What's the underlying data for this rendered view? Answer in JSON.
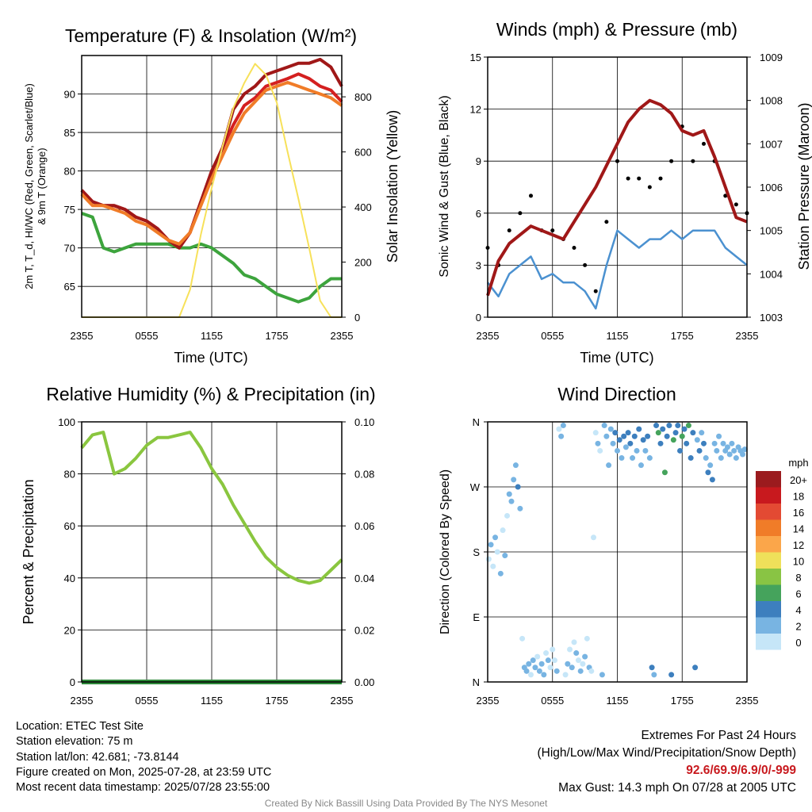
{
  "chart_data": [
    {
      "type": "line",
      "title": "Temperature (F) & Insolation (W/m²)",
      "xlabel": "Time (UTC)",
      "ylabel_lines": [
        "2m T, T_d, HI/WC (Red, Green, Scarlet/Blue)",
        "& 9m T (Orange)"
      ],
      "y2label": "Solar Insolation (Yellow)",
      "x_ticks": [
        "2355",
        "0555",
        "1155",
        "1755",
        "2355"
      ],
      "y_ticks": [
        "65",
        "70",
        "75",
        "80",
        "85",
        "90"
      ],
      "y2_ticks": [
        "0",
        "200",
        "400",
        "600",
        "800"
      ],
      "ylim": [
        61,
        95
      ],
      "y2lim": [
        0,
        950
      ],
      "x_hours_after_2355": [
        0,
        1,
        2,
        3,
        4,
        5,
        6,
        7,
        8,
        9,
        10,
        11,
        12,
        13,
        14,
        15,
        16,
        17,
        18,
        19,
        20,
        21,
        22,
        23,
        24
      ],
      "series": [
        {
          "key": "t2m",
          "color": "#d42020",
          "values": [
            77.5,
            76,
            75.5,
            75.5,
            75,
            74,
            73.5,
            72.5,
            71,
            70,
            72,
            76,
            80,
            83,
            86,
            88.5,
            89.5,
            91,
            91.5,
            92,
            92.6,
            92,
            91,
            90.5,
            89
          ]
        },
        {
          "key": "dewpoint",
          "color": "#3da43d",
          "values": [
            74.5,
            74,
            70,
            69.5,
            70,
            70.5,
            70.5,
            70.5,
            70.5,
            70,
            70,
            70.5,
            70,
            69,
            68,
            66.5,
            66,
            65,
            64,
            63.5,
            63,
            63.5,
            65,
            66,
            66
          ]
        },
        {
          "key": "hi_wc",
          "color": "#a01818",
          "values": [
            77.5,
            76,
            75.5,
            75.5,
            75,
            74,
            73.5,
            72.5,
            71,
            70,
            72,
            76,
            80,
            83,
            88,
            90,
            91,
            92.5,
            93,
            93.5,
            94,
            94,
            94.5,
            93.5,
            91
          ]
        },
        {
          "key": "t9m",
          "color": "#f07c28",
          "values": [
            77,
            75.5,
            75.5,
            75,
            74.5,
            73.5,
            73,
            72,
            71,
            70.5,
            72,
            75.5,
            79,
            82,
            85,
            87.5,
            89,
            90.5,
            91,
            91.5,
            91,
            90.5,
            90,
            89.5,
            88.5
          ]
        },
        {
          "key": "insolation",
          "axis": "y2",
          "color": "#f7e15a",
          "values": [
            0,
            0,
            0,
            0,
            0,
            0,
            0,
            0,
            0,
            0,
            100,
            300,
            470,
            620,
            760,
            850,
            920,
            880,
            780,
            600,
            430,
            250,
            60,
            0,
            0
          ]
        }
      ]
    },
    {
      "type": "line",
      "title": "Winds (mph) & Pressure (mb)",
      "xlabel": "Time (UTC)",
      "ylabel": "Sonic Wind & Gust (Blue, Black)",
      "y2label": "Station Pressure (Maroon)",
      "x_ticks": [
        "2355",
        "0555",
        "1155",
        "1755",
        "2355"
      ],
      "y_ticks": [
        "0",
        "3",
        "6",
        "9",
        "12",
        "15"
      ],
      "y2_ticks": [
        "1003",
        "1004",
        "1005",
        "1006",
        "1007",
        "1008",
        "1009"
      ],
      "ylim": [
        0,
        15
      ],
      "y2lim": [
        1003,
        1009
      ],
      "x_hours_after_2355": [
        0,
        1,
        2,
        3,
        4,
        5,
        6,
        7,
        8,
        9,
        10,
        11,
        12,
        13,
        14,
        15,
        16,
        17,
        18,
        19,
        20,
        21,
        22,
        23,
        24
      ],
      "series": [
        {
          "key": "wind",
          "color": "#4b91d0",
          "values": [
            2,
            1.2,
            2.5,
            3,
            3.5,
            2.2,
            2.5,
            2,
            2,
            1.5,
            0.5,
            3,
            5,
            4.5,
            4,
            4.5,
            4.5,
            5,
            4.5,
            5,
            5,
            5,
            4,
            3.5,
            3
          ]
        },
        {
          "key": "gust",
          "color": "#000000",
          "values": [
            4,
            3,
            5,
            6,
            7,
            5,
            5,
            4.5,
            4,
            3,
            1.5,
            5.5,
            9,
            8,
            8,
            7.5,
            8,
            9,
            11,
            9,
            10,
            9,
            7,
            6.5,
            6
          ]
        },
        {
          "key": "pressure",
          "axis": "y2",
          "color": "#a01818",
          "values": [
            1003.5,
            1004.3,
            1004.7,
            1004.9,
            1005.1,
            1005,
            1004.9,
            1004.8,
            1005.2,
            1005.6,
            1006,
            1006.5,
            1007,
            1007.5,
            1007.8,
            1008,
            1007.9,
            1007.7,
            1007.3,
            1007.2,
            1007.3,
            1006.7,
            1006,
            1005.3,
            1005.2
          ]
        }
      ]
    },
    {
      "type": "line",
      "title": "Relative Humidity (%) & Precipitation (in)",
      "ylabel": "Percent & Precipitation",
      "x_ticks": [
        "2355",
        "0555",
        "1155",
        "1755",
        "2355"
      ],
      "y_ticks": [
        "0",
        "20",
        "40",
        "60",
        "80",
        "100"
      ],
      "y2_ticks": [
        "0.00",
        "0.02",
        "0.04",
        "0.06",
        "0.08",
        "0.10"
      ],
      "ylim": [
        0,
        100
      ],
      "y2lim": [
        0,
        0.1
      ],
      "x_hours_after_2355": [
        0,
        1,
        2,
        3,
        4,
        5,
        6,
        7,
        8,
        9,
        10,
        11,
        12,
        13,
        14,
        15,
        16,
        17,
        18,
        19,
        20,
        21,
        22,
        23,
        24
      ],
      "series": [
        {
          "key": "rh",
          "color": "#8ac63f",
          "values": [
            90,
            95,
            96,
            80,
            82,
            86,
            91,
            94,
            94,
            95,
            96,
            90,
            82,
            76,
            68,
            61,
            54,
            48,
            44,
            41,
            39,
            38,
            39,
            43,
            47
          ]
        },
        {
          "key": "precip",
          "axis": "y2",
          "color": "#2e8a3a",
          "values": [
            0,
            0,
            0,
            0,
            0,
            0,
            0,
            0,
            0,
            0,
            0,
            0,
            0,
            0,
            0,
            0,
            0,
            0,
            0,
            0,
            0,
            0,
            0,
            0,
            0
          ]
        }
      ]
    },
    {
      "type": "scatter",
      "title": "Wind Direction",
      "ylabel": "Direction (Colored By Speed)",
      "x_ticks": [
        "2355",
        "0555",
        "1155",
        "1755",
        "2355"
      ],
      "y_ticks": [
        "N",
        "E",
        "S",
        "W",
        "N"
      ],
      "ylim": [
        0,
        360
      ],
      "legend": {
        "title": "mph",
        "labels": [
          "20+",
          "18",
          "16",
          "14",
          "12",
          "10",
          "8",
          "6",
          "4",
          "2",
          "0"
        ],
        "colors": [
          "#9b1b1e",
          "#c8191e",
          "#e34a33",
          "#f07c28",
          "#fba64a",
          "#efe05a",
          "#89c444",
          "#45a35c",
          "#3d7fbe",
          "#78b4e2",
          "#c6e6f8"
        ]
      },
      "points": [
        {
          "x": 0.1,
          "dir": 170,
          "speed": 1
        },
        {
          "x": 0.3,
          "dir": 190,
          "speed": 2
        },
        {
          "x": 0.5,
          "dir": 160,
          "speed": 1
        },
        {
          "x": 0.7,
          "dir": 200,
          "speed": 2
        },
        {
          "x": 0.9,
          "dir": 180,
          "speed": 1
        },
        {
          "x": 1.2,
          "dir": 150,
          "speed": 2
        },
        {
          "x": 1.4,
          "dir": 210,
          "speed": 1
        },
        {
          "x": 1.6,
          "dir": 175,
          "speed": 2
        },
        {
          "x": 1.8,
          "dir": 230,
          "speed": 1
        },
        {
          "x": 2.0,
          "dir": 260,
          "speed": 2
        },
        {
          "x": 2.2,
          "dir": 250,
          "speed": 3
        },
        {
          "x": 2.4,
          "dir": 280,
          "speed": 2
        },
        {
          "x": 2.6,
          "dir": 300,
          "speed": 3
        },
        {
          "x": 2.8,
          "dir": 270,
          "speed": 4
        },
        {
          "x": 3.0,
          "dir": 240,
          "speed": 2
        },
        {
          "x": 3.2,
          "dir": 60,
          "speed": 1
        },
        {
          "x": 3.4,
          "dir": 20,
          "speed": 2
        },
        {
          "x": 3.6,
          "dir": 15,
          "speed": 3
        },
        {
          "x": 3.8,
          "dir": 25,
          "speed": 2
        },
        {
          "x": 4.0,
          "dir": 10,
          "speed": 1
        },
        {
          "x": 4.2,
          "dir": 30,
          "speed": 3
        },
        {
          "x": 4.4,
          "dir": 20,
          "speed": 2
        },
        {
          "x": 4.6,
          "dir": 35,
          "speed": 1
        },
        {
          "x": 4.8,
          "dir": 15,
          "speed": 2
        },
        {
          "x": 5.0,
          "dir": 25,
          "speed": 3
        },
        {
          "x": 5.2,
          "dir": 10,
          "speed": 2
        },
        {
          "x": 5.4,
          "dir": 40,
          "speed": 1
        },
        {
          "x": 5.6,
          "dir": 30,
          "speed": 2
        },
        {
          "x": 5.8,
          "dir": 20,
          "speed": 1
        },
        {
          "x": 6.0,
          "dir": 45,
          "speed": 0
        },
        {
          "x": 6.2,
          "dir": 30,
          "speed": 1
        },
        {
          "x": 6.4,
          "dir": 15,
          "speed": 2
        },
        {
          "x": 6.6,
          "dir": 350,
          "speed": 1
        },
        {
          "x": 6.8,
          "dir": 340,
          "speed": 2
        },
        {
          "x": 7.0,
          "dir": 355,
          "speed": 2
        },
        {
          "x": 7.2,
          "dir": 10,
          "speed": 1
        },
        {
          "x": 7.4,
          "dir": 25,
          "speed": 2
        },
        {
          "x": 7.6,
          "dir": 45,
          "speed": 1
        },
        {
          "x": 7.8,
          "dir": 20,
          "speed": 2
        },
        {
          "x": 8.0,
          "dir": 55,
          "speed": 1
        },
        {
          "x": 8.2,
          "dir": 40,
          "speed": 2
        },
        {
          "x": 8.4,
          "dir": 30,
          "speed": 1
        },
        {
          "x": 8.6,
          "dir": 15,
          "speed": 2
        },
        {
          "x": 8.8,
          "dir": 25,
          "speed": 1
        },
        {
          "x": 9.0,
          "dir": 35,
          "speed": 2
        },
        {
          "x": 9.2,
          "dir": 60,
          "speed": 1
        },
        {
          "x": 9.4,
          "dir": 20,
          "speed": 2
        },
        {
          "x": 9.6,
          "dir": 15,
          "speed": 1
        },
        {
          "x": 9.8,
          "dir": 200,
          "speed": 1
        },
        {
          "x": 10.0,
          "dir": 345,
          "speed": 1
        },
        {
          "x": 10.2,
          "dir": 330,
          "speed": 2
        },
        {
          "x": 10.4,
          "dir": 320,
          "speed": 1
        },
        {
          "x": 10.6,
          "dir": 10,
          "speed": 2
        },
        {
          "x": 10.8,
          "dir": 355,
          "speed": 2
        },
        {
          "x": 11.0,
          "dir": 340,
          "speed": 3
        },
        {
          "x": 11.2,
          "dir": 300,
          "speed": 2
        },
        {
          "x": 11.4,
          "dir": 350,
          "speed": 3
        },
        {
          "x": 11.6,
          "dir": 330,
          "speed": 2
        },
        {
          "x": 11.8,
          "dir": 345,
          "speed": 4
        },
        {
          "x": 12.0,
          "dir": 320,
          "speed": 3
        },
        {
          "x": 12.2,
          "dir": 335,
          "speed": 4
        },
        {
          "x": 12.4,
          "dir": 310,
          "speed": 3
        },
        {
          "x": 12.6,
          "dir": 340,
          "speed": 4
        },
        {
          "x": 12.8,
          "dir": 325,
          "speed": 3
        },
        {
          "x": 13.0,
          "dir": 345,
          "speed": 5
        },
        {
          "x": 13.2,
          "dir": 330,
          "speed": 4
        },
        {
          "x": 13.4,
          "dir": 310,
          "speed": 3
        },
        {
          "x": 13.6,
          "dir": 340,
          "speed": 4
        },
        {
          "x": 13.8,
          "dir": 320,
          "speed": 3
        },
        {
          "x": 14.0,
          "dir": 350,
          "speed": 4
        },
        {
          "x": 14.2,
          "dir": 300,
          "speed": 3
        },
        {
          "x": 14.4,
          "dir": 335,
          "speed": 4
        },
        {
          "x": 14.6,
          "dir": 320,
          "speed": 3
        },
        {
          "x": 14.8,
          "dir": 340,
          "speed": 4
        },
        {
          "x": 15.0,
          "dir": 310,
          "speed": 3
        },
        {
          "x": 15.2,
          "dir": 20,
          "speed": 4
        },
        {
          "x": 15.4,
          "dir": 10,
          "speed": 3
        },
        {
          "x": 15.6,
          "dir": 355,
          "speed": 5
        },
        {
          "x": 15.8,
          "dir": 345,
          "speed": 6
        },
        {
          "x": 16.0,
          "dir": 330,
          "speed": 4
        },
        {
          "x": 16.2,
          "dir": 350,
          "speed": 5
        },
        {
          "x": 16.4,
          "dir": 290,
          "speed": 6
        },
        {
          "x": 16.6,
          "dir": 340,
          "speed": 4
        },
        {
          "x": 16.8,
          "dir": 355,
          "speed": 5
        },
        {
          "x": 17.0,
          "dir": 10,
          "speed": 4
        },
        {
          "x": 17.2,
          "dir": 335,
          "speed": 6
        },
        {
          "x": 17.4,
          "dir": 345,
          "speed": 4
        },
        {
          "x": 17.6,
          "dir": 355,
          "speed": 5
        },
        {
          "x": 17.8,
          "dir": 320,
          "speed": 4
        },
        {
          "x": 18.0,
          "dir": 340,
          "speed": 6
        },
        {
          "x": 18.2,
          "dir": 350,
          "speed": 5
        },
        {
          "x": 18.4,
          "dir": 330,
          "speed": 4
        },
        {
          "x": 18.6,
          "dir": 355,
          "speed": 6
        },
        {
          "x": 18.8,
          "dir": 310,
          "speed": 4
        },
        {
          "x": 19.0,
          "dir": 345,
          "speed": 5
        },
        {
          "x": 19.2,
          "dir": 20,
          "speed": 4
        },
        {
          "x": 19.4,
          "dir": 335,
          "speed": 3
        },
        {
          "x": 19.6,
          "dir": 320,
          "speed": 4
        },
        {
          "x": 19.8,
          "dir": 345,
          "speed": 3
        },
        {
          "x": 20.0,
          "dir": 330,
          "speed": 4
        },
        {
          "x": 20.2,
          "dir": 310,
          "speed": 3
        },
        {
          "x": 20.4,
          "dir": 290,
          "speed": 4
        },
        {
          "x": 20.6,
          "dir": 300,
          "speed": 3
        },
        {
          "x": 20.8,
          "dir": 280,
          "speed": 4
        },
        {
          "x": 21.0,
          "dir": 330,
          "speed": 3
        },
        {
          "x": 21.2,
          "dir": 320,
          "speed": 2
        },
        {
          "x": 21.4,
          "dir": 340,
          "speed": 3
        },
        {
          "x": 21.6,
          "dir": 310,
          "speed": 2
        },
        {
          "x": 21.8,
          "dir": 330,
          "speed": 3
        },
        {
          "x": 22.0,
          "dir": 320,
          "speed": 2
        },
        {
          "x": 22.2,
          "dir": 325,
          "speed": 3
        },
        {
          "x": 22.4,
          "dir": 315,
          "speed": 2
        },
        {
          "x": 22.6,
          "dir": 330,
          "speed": 3
        },
        {
          "x": 22.8,
          "dir": 320,
          "speed": 2
        },
        {
          "x": 23.0,
          "dir": 310,
          "speed": 3
        },
        {
          "x": 23.2,
          "dir": 325,
          "speed": 2
        },
        {
          "x": 23.4,
          "dir": 320,
          "speed": 3
        },
        {
          "x": 23.6,
          "dir": 315,
          "speed": 2
        },
        {
          "x": 23.8,
          "dir": 322,
          "speed": 2
        }
      ]
    }
  ],
  "info": {
    "location": "Location: ETEC Test Site",
    "elevation": "Station elevation: 75 m",
    "latlon": "Station lat/lon: 42.681; -73.8144",
    "created": "Figure created on Mon, 2025-07-28, at 23:59 UTC",
    "recent": "Most recent data timestamp: 2025/07/28 23:55:00"
  },
  "extremes": {
    "title": "Extremes For Past 24 Hours",
    "subtitle": "(High/Low/Max Wind/Precipitation/Snow Depth)",
    "values": "92.6/69.9/6.9/0/-999",
    "gust": "Max Gust: 14.3 mph On 07/28 at 2005 UTC"
  },
  "credit": "Created By Nick Bassill Using Data Provided By The NYS Mesonet"
}
